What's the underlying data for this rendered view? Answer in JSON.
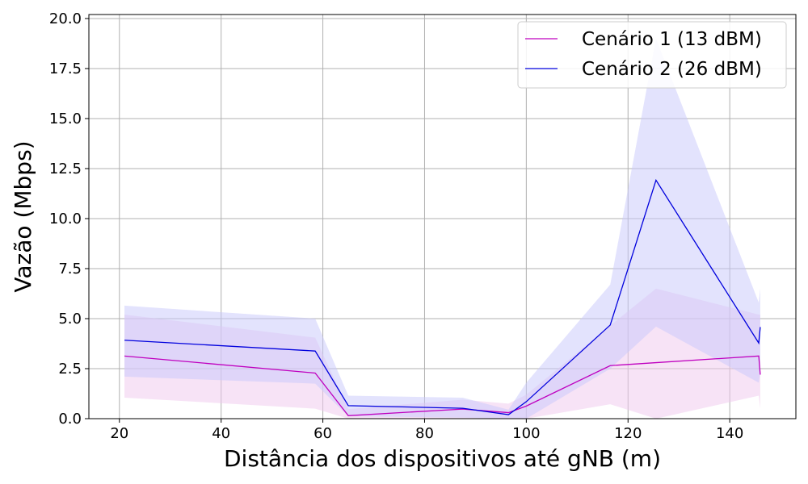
{
  "chart_data": {
    "type": "line",
    "title": "",
    "xlabel": "Distância dos dispositivos até gNB (m)",
    "ylabel": "Vazão (Mbps)",
    "xlim": [
      14,
      153
    ],
    "ylim": [
      0,
      20.2
    ],
    "xticks": [
      20,
      40,
      60,
      80,
      100,
      120,
      140
    ],
    "yticks": [
      0.0,
      2.5,
      5.0,
      7.5,
      10.0,
      12.5,
      15.0,
      17.5,
      20.0
    ],
    "xtick_labels": [
      "20",
      "40",
      "60",
      "80",
      "100",
      "120",
      "140"
    ],
    "ytick_labels": [
      "0.0",
      "2.5",
      "5.0",
      "7.5",
      "10.0",
      "12.5",
      "15.0",
      "17.5",
      "20.0"
    ],
    "grid": true,
    "legend_position": "top-right",
    "series": [
      {
        "name": "Cenário 1 (13 dBM)",
        "color": "#bf00bf",
        "band_color": "#f0c8ee",
        "x": [
          21,
          58.5,
          65,
          87.5,
          96.5,
          100,
          116.5,
          125.5,
          145.7,
          146
        ],
        "y": [
          3.13,
          2.28,
          0.15,
          0.48,
          0.3,
          0.63,
          2.65,
          2.8,
          3.13,
          2.2
        ],
        "lower": [
          1.05,
          0.5,
          0.0,
          0.0,
          0.0,
          0.0,
          0.72,
          0.0,
          1.15,
          0.5
        ],
        "upper": [
          5.2,
          4.05,
          0.48,
          0.95,
          0.75,
          1.2,
          4.65,
          6.5,
          5.2,
          5.2
        ]
      },
      {
        "name": "Cenário 2 (26 dBM)",
        "color": "#0000dd",
        "band_color": "#c8c8fb",
        "x": [
          21,
          58.5,
          65,
          87.5,
          96.5,
          100,
          116.5,
          125.5,
          145.7,
          146
        ],
        "y": [
          3.92,
          3.38,
          0.65,
          0.52,
          0.2,
          0.85,
          4.68,
          11.92,
          3.78,
          4.58
        ],
        "lower": [
          2.1,
          1.75,
          0.12,
          0.05,
          0.0,
          0.0,
          2.5,
          4.6,
          1.8,
          2.3
        ],
        "upper": [
          5.65,
          5.0,
          1.15,
          1.05,
          0.45,
          1.8,
          6.7,
          19.0,
          5.8,
          6.5
        ]
      }
    ]
  }
}
